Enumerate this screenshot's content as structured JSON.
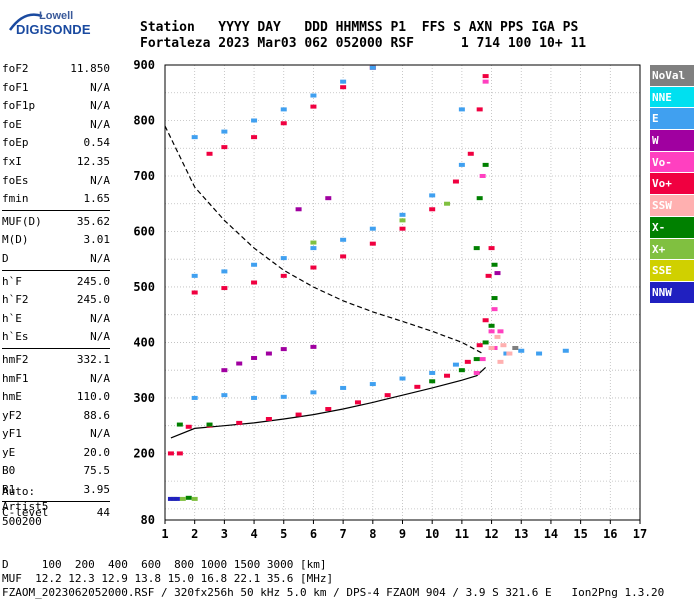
{
  "logo": {
    "brand": "Lowell",
    "product": "DIGISONDE"
  },
  "header": {
    "line1": "Station   YYYY DAY   DDD HHMMSS P1  FFS S AXN PPS IGA PS",
    "line2": "Fortaleza 2023 Mar03 062 052000 RSF      1 714 100 10+ 11"
  },
  "params": {
    "group1": [
      {
        "name": "foF2",
        "value": "11.850"
      },
      {
        "name": "foF1",
        "value": "N/A"
      },
      {
        "name": "foF1p",
        "value": "N/A"
      },
      {
        "name": "foE",
        "value": "N/A"
      },
      {
        "name": "foEp",
        "value": "0.54"
      },
      {
        "name": "fxI",
        "value": "12.35"
      },
      {
        "name": "foEs",
        "value": "N/A"
      },
      {
        "name": "fmin",
        "value": "1.65"
      }
    ],
    "group2": [
      {
        "name": "MUF(D)",
        "value": "35.62"
      },
      {
        "name": "M(D)",
        "value": "3.01"
      },
      {
        "name": "D",
        "value": "N/A"
      }
    ],
    "group3": [
      {
        "name": "h`F",
        "value": "245.0"
      },
      {
        "name": "h`F2",
        "value": "245.0"
      },
      {
        "name": "h`E",
        "value": "N/A"
      },
      {
        "name": "h`Es",
        "value": "N/A"
      }
    ],
    "group4": [
      {
        "name": "hmF2",
        "value": "332.1"
      },
      {
        "name": "hmF1",
        "value": "N/A"
      },
      {
        "name": "hmE",
        "value": "110.0"
      },
      {
        "name": "yF2",
        "value": "88.6"
      },
      {
        "name": "yF1",
        "value": "N/A"
      },
      {
        "name": "yE",
        "value": "20.0"
      },
      {
        "name": "B0",
        "value": "75.5"
      },
      {
        "name": "B1",
        "value": "3.95"
      }
    ],
    "group5": [
      {
        "name": "C-level",
        "value": "44"
      }
    ]
  },
  "auto": {
    "line1": "Auto:",
    "line2": "Artist5",
    "line3": "500200"
  },
  "legend": [
    {
      "label": "NoVal",
      "color": "#808080"
    },
    {
      "label": "NNE",
      "color": "#00e0f0"
    },
    {
      "label": "E",
      "color": "#40a0f0"
    },
    {
      "label": "W",
      "color": "#a000a0"
    },
    {
      "label": "Vo-",
      "color": "#ff40c0"
    },
    {
      "label": "Vo+",
      "color": "#f00040"
    },
    {
      "label": "SSW",
      "color": "#ffb0b0"
    },
    {
      "label": "X-",
      "color": "#008000"
    },
    {
      "label": "X+",
      "color": "#80c040"
    },
    {
      "label": "SSE",
      "color": "#d0d000"
    },
    {
      "label": "NNW",
      "color": "#2020c0"
    }
  ],
  "footer": {
    "line1": "D     100  200  400  600  800 1000 1500 3000 [km]",
    "line2": "MUF  12.2 12.3 12.9 13.8 15.0 16.8 22.1 35.6 [MHz]",
    "line3": "FZAOM_2023062052000.RSF / 320fx256h 50 kHz 5.0 km / DPS-4 FZAOM 904 / 3.9 S 321.6 E   Ion2Png 1.3.20"
  },
  "chart_data": {
    "type": "scatter",
    "title": "",
    "xlabel": "",
    "ylabel": "",
    "xlim": [
      1,
      17
    ],
    "ylim": [
      80,
      900
    ],
    "x_ticks": [
      1,
      2,
      3,
      4,
      5,
      6,
      7,
      8,
      9,
      10,
      11,
      12,
      13,
      14,
      15,
      16,
      17
    ],
    "y_ticks": [
      80,
      200,
      300,
      400,
      500,
      600,
      700,
      800,
      900
    ],
    "grid": true,
    "series": [
      {
        "name": "Vo+",
        "color": "#f00040",
        "points": [
          [
            1.8,
            248
          ],
          [
            2.5,
            250
          ],
          [
            3.5,
            255
          ],
          [
            4.5,
            262
          ],
          [
            5.5,
            270
          ],
          [
            6.5,
            280
          ],
          [
            7.5,
            292
          ],
          [
            8.5,
            305
          ],
          [
            9.5,
            320
          ],
          [
            10.5,
            340
          ],
          [
            11.2,
            365
          ],
          [
            11.6,
            395
          ],
          [
            11.8,
            440
          ],
          [
            11.9,
            520
          ],
          [
            12.0,
            570
          ],
          [
            2.0,
            490
          ],
          [
            3.0,
            498
          ],
          [
            4.0,
            508
          ],
          [
            5.0,
            520
          ],
          [
            6.0,
            535
          ],
          [
            7.0,
            555
          ],
          [
            8.0,
            578
          ],
          [
            9.0,
            605
          ],
          [
            10.0,
            640
          ],
          [
            10.8,
            690
          ],
          [
            11.3,
            740
          ],
          [
            11.6,
            820
          ],
          [
            11.8,
            880
          ],
          [
            2.5,
            740
          ],
          [
            3.0,
            752
          ],
          [
            4.0,
            770
          ],
          [
            5.0,
            795
          ],
          [
            6.0,
            825
          ],
          [
            7.0,
            860
          ],
          [
            8.0,
            895
          ],
          [
            1.2,
            200
          ],
          [
            1.5,
            200
          ]
        ]
      },
      {
        "name": "E",
        "color": "#40a0f0",
        "points": [
          [
            2.0,
            300
          ],
          [
            3.0,
            305
          ],
          [
            4.0,
            300
          ],
          [
            5.0,
            302
          ],
          [
            6.0,
            310
          ],
          [
            7.0,
            318
          ],
          [
            8.0,
            325
          ],
          [
            9.0,
            335
          ],
          [
            10.0,
            345
          ],
          [
            10.8,
            360
          ],
          [
            2.0,
            520
          ],
          [
            3.0,
            528
          ],
          [
            4.0,
            540
          ],
          [
            5.0,
            552
          ],
          [
            6.0,
            570
          ],
          [
            7.0,
            585
          ],
          [
            8.0,
            605
          ],
          [
            9.0,
            630
          ],
          [
            10.0,
            665
          ],
          [
            11.0,
            720
          ],
          [
            2.0,
            770
          ],
          [
            3.0,
            780
          ],
          [
            4.0,
            800
          ],
          [
            5.0,
            820
          ],
          [
            6.0,
            845
          ],
          [
            7.0,
            870
          ],
          [
            8.0,
            895
          ],
          [
            11.0,
            820
          ],
          [
            12.5,
            380
          ],
          [
            13.0,
            385
          ],
          [
            13.6,
            380
          ],
          [
            14.5,
            385
          ]
        ]
      },
      {
        "name": "W",
        "color": "#a000a0",
        "points": [
          [
            3.0,
            350
          ],
          [
            3.5,
            362
          ],
          [
            4.0,
            372
          ],
          [
            4.5,
            380
          ],
          [
            5.0,
            388
          ],
          [
            6.0,
            392
          ],
          [
            5.5,
            640
          ],
          [
            6.5,
            660
          ],
          [
            12.2,
            525
          ]
        ]
      },
      {
        "name": "Vo-",
        "color": "#ff40c0",
        "points": [
          [
            11.5,
            345
          ],
          [
            11.7,
            370
          ],
          [
            12.0,
            420
          ],
          [
            12.1,
            460
          ],
          [
            11.7,
            700
          ],
          [
            11.8,
            870
          ],
          [
            12.1,
            390
          ],
          [
            12.3,
            420
          ]
        ]
      },
      {
        "name": "SSW",
        "color": "#ffb0b0",
        "points": [
          [
            12.0,
            390
          ],
          [
            12.2,
            410
          ],
          [
            12.4,
            395
          ],
          [
            12.6,
            380
          ],
          [
            12.3,
            365
          ]
        ]
      },
      {
        "name": "X-",
        "color": "#008000",
        "points": [
          [
            1.5,
            252
          ],
          [
            2.5,
            252
          ],
          [
            10.0,
            330
          ],
          [
            11.0,
            350
          ],
          [
            11.5,
            370
          ],
          [
            11.8,
            400
          ],
          [
            12.0,
            430
          ],
          [
            12.1,
            480
          ],
          [
            12.1,
            540
          ],
          [
            11.5,
            570
          ],
          [
            11.6,
            660
          ],
          [
            11.8,
            720
          ],
          [
            1.8,
            120
          ]
        ]
      },
      {
        "name": "X+",
        "color": "#80c040",
        "points": [
          [
            1.3,
            118
          ],
          [
            1.6,
            118
          ],
          [
            2.0,
            118
          ],
          [
            6.0,
            580
          ],
          [
            9.0,
            620
          ],
          [
            10.5,
            650
          ]
        ]
      },
      {
        "name": "NNW",
        "color": "#2020c0",
        "points": [
          [
            1.2,
            118
          ],
          [
            1.4,
            118
          ]
        ]
      },
      {
        "name": "NoVal",
        "color": "#808080",
        "points": [
          [
            12.8,
            390
          ]
        ]
      }
    ],
    "profile_curve": [
      [
        1.2,
        228
      ],
      [
        2,
        245
      ],
      [
        3,
        250
      ],
      [
        4,
        255
      ],
      [
        5,
        262
      ],
      [
        6,
        270
      ],
      [
        7,
        280
      ],
      [
        8,
        292
      ],
      [
        9,
        305
      ],
      [
        10,
        318
      ],
      [
        11,
        332
      ],
      [
        11.5,
        340
      ],
      [
        11.8,
        355
      ]
    ],
    "muf_curve": [
      [
        1.0,
        790
      ],
      [
        2,
        680
      ],
      [
        3,
        620
      ],
      [
        4,
        570
      ],
      [
        5,
        530
      ],
      [
        6,
        500
      ],
      [
        7,
        475
      ],
      [
        8,
        455
      ],
      [
        9,
        438
      ],
      [
        10,
        420
      ],
      [
        11,
        400
      ],
      [
        11.7,
        380
      ]
    ]
  }
}
